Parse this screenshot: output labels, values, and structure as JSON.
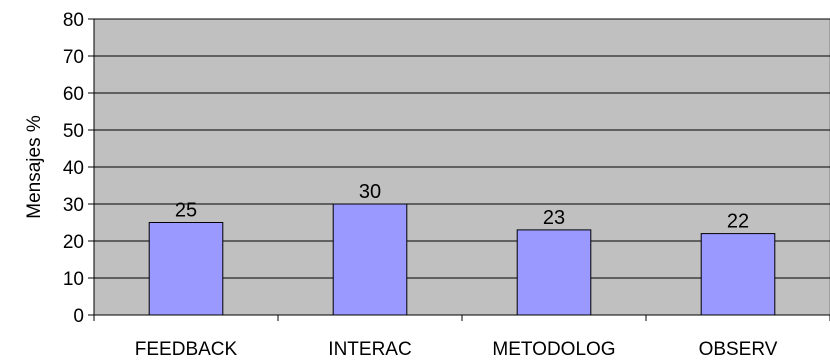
{
  "chart_data": {
    "type": "bar",
    "title": "",
    "xlabel": "",
    "ylabel": "Mensajes %",
    "ylim": [
      0,
      80
    ],
    "yticks": [
      0,
      10,
      20,
      30,
      40,
      50,
      60,
      70,
      80
    ],
    "grid": true,
    "legend": "none",
    "categories": [
      "FEEDBACK",
      "INTERAC",
      "METODOLOG",
      "OBSERV"
    ],
    "values": [
      25,
      30,
      23,
      22
    ],
    "data_labels": [
      "25",
      "30",
      "23",
      "22"
    ],
    "colors": {
      "plot_background": "#c0c0c0",
      "bar_fill": "#9999ff",
      "bar_stroke": "#000000",
      "gridline": "#000000"
    }
  }
}
